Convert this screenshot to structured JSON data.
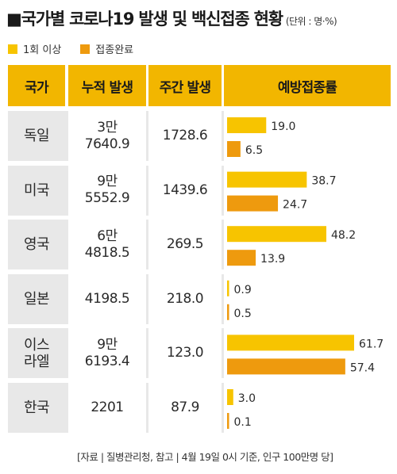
{
  "title": {
    "main": "■국가별 코로나19 발생 및 백신접종 현황",
    "unit": "(단위 : 명·%)"
  },
  "legend": [
    {
      "label": "1회 이상",
      "color": "#f7c400"
    },
    {
      "label": "접종완료",
      "color": "#ee9a0e"
    }
  ],
  "table": {
    "headers": [
      "국가",
      "누적 발생",
      "주간 발생",
      "예방접종률"
    ],
    "rows": [
      {
        "country": "독일",
        "cumulative": "3만\n7640.9",
        "weekly": "1728.6"
      },
      {
        "country": "미국",
        "cumulative": "9만\n5552.9",
        "weekly": "1439.6"
      },
      {
        "country": "영국",
        "cumulative": "6만\n4818.5",
        "weekly": "269.5"
      },
      {
        "country": "일본",
        "cumulative": "4198.5",
        "weekly": "218.0"
      },
      {
        "country": "이스\n라엘",
        "cumulative": "9만\n6193.4",
        "weekly": "123.0"
      },
      {
        "country": "한국",
        "cumulative": "2201",
        "weekly": "87.9"
      }
    ]
  },
  "chart_data": {
    "type": "bar",
    "orientation": "horizontal",
    "categories": [
      "독일",
      "미국",
      "영국",
      "일본",
      "이스라엘",
      "한국"
    ],
    "series": [
      {
        "name": "1회 이상",
        "values": [
          19.0,
          38.7,
          48.2,
          0.9,
          61.7,
          3.0
        ],
        "labels": [
          "19.0",
          "38.7",
          "48.2",
          "0.9",
          "61.7",
          "3.0"
        ]
      },
      {
        "name": "접종완료",
        "values": [
          6.5,
          24.7,
          13.9,
          0.5,
          57.4,
          0.1
        ],
        "labels": [
          "6.5",
          "24.7",
          "13.9",
          "0.5",
          "57.4",
          "0.1"
        ]
      }
    ],
    "xlim": [
      0,
      61.7
    ],
    "grid": false,
    "legend_position": "top-left",
    "colors": [
      "#f7c400",
      "#ee9a0e"
    ]
  },
  "footer": "[자료 | 질병관리청, 참고 | 4월 19일 0시 기준, 인구 100만명 당]"
}
